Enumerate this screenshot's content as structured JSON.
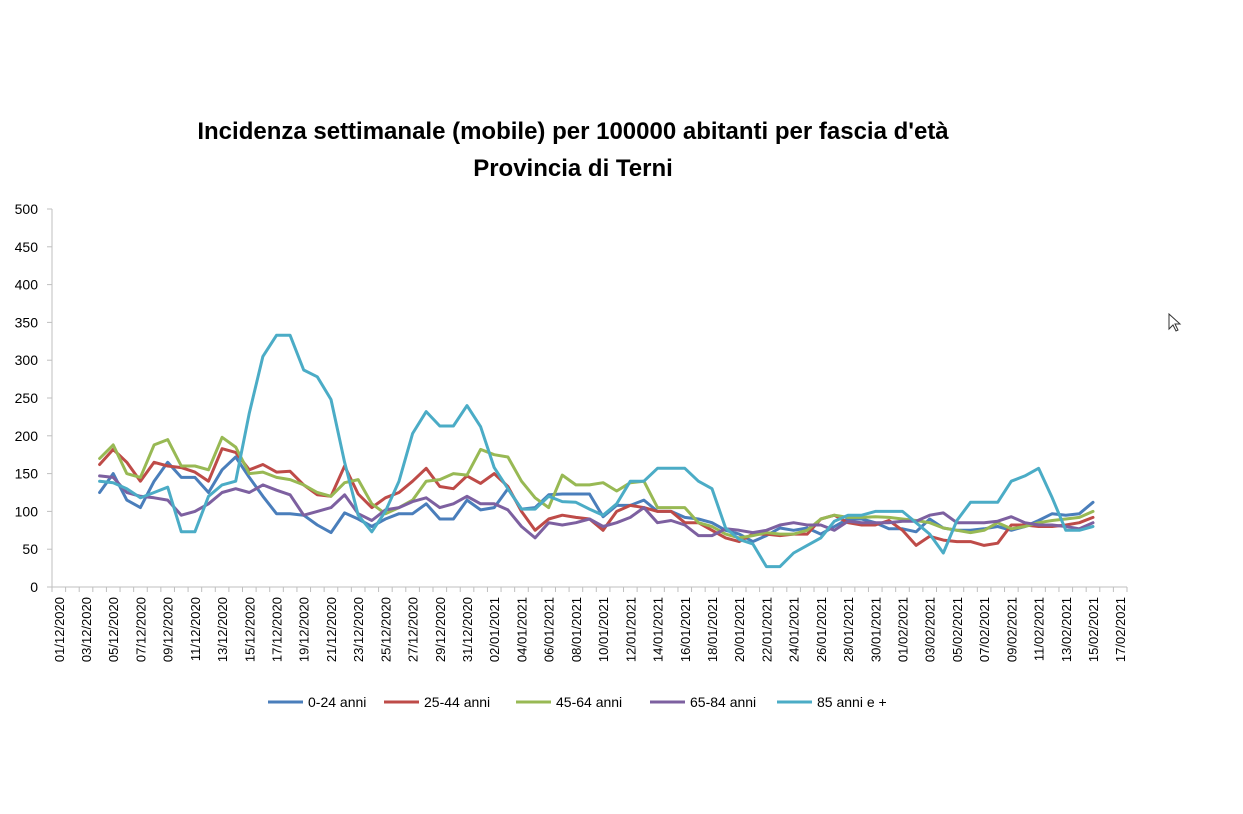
{
  "chart_data": {
    "type": "line",
    "title": "Incidenza settimanale (mobile) per 100000 abitanti per fascia d'età",
    "subtitle": "Provincia di Terni",
    "ylim": [
      0,
      500
    ],
    "yticks": [
      "0",
      "50",
      "100",
      "150",
      "200",
      "250",
      "300",
      "350",
      "400",
      "450",
      "500"
    ],
    "xtick_labels": [
      "01/12/2020",
      "03/12/2020",
      "05/12/2020",
      "07/12/2020",
      "09/12/2020",
      "11/12/2020",
      "13/12/2020",
      "15/12/2020",
      "17/12/2020",
      "19/12/2020",
      "21/12/2020",
      "23/12/2020",
      "25/12/2020",
      "27/12/2020",
      "29/12/2020",
      "31/12/2020",
      "02/01/2021",
      "04/01/2021",
      "06/01/2021",
      "08/01/2021",
      "10/01/2021",
      "12/01/2021",
      "14/01/2021",
      "16/01/2021",
      "18/01/2021",
      "20/01/2021",
      "22/01/2021",
      "24/01/2021",
      "26/01/2021",
      "28/01/2021",
      "30/01/2021",
      "01/02/2021",
      "03/02/2021",
      "05/02/2021",
      "07/02/2021",
      "09/02/2021",
      "11/02/2021",
      "13/02/2021",
      "15/02/2021",
      "17/02/2021"
    ],
    "x_start": "2020-12-04",
    "grid": false,
    "legend_position": "bottom",
    "series": [
      {
        "name": "0-24 anni",
        "color": "#4a7ebb",
        "values": [
          125,
          150,
          115,
          105,
          140,
          165,
          145,
          145,
          125,
          155,
          172,
          145,
          120,
          97,
          97,
          95,
          82,
          72,
          98,
          90,
          80,
          90,
          97,
          97,
          110,
          90,
          90,
          115,
          102,
          105,
          130,
          103,
          105,
          122,
          123,
          123,
          123,
          93,
          108,
          108,
          115,
          100,
          100,
          92,
          90,
          85,
          75,
          70,
          60,
          68,
          78,
          75,
          78,
          70,
          80,
          90,
          90,
          85,
          77,
          77,
          73,
          90,
          78,
          75,
          75,
          77,
          80,
          75,
          80,
          88,
          97,
          95,
          97,
          112
        ]
      },
      {
        "name": "25-44 anni",
        "color": "#be4b48",
        "values": [
          162,
          182,
          165,
          140,
          165,
          160,
          158,
          152,
          140,
          183,
          178,
          155,
          162,
          152,
          153,
          135,
          122,
          120,
          160,
          123,
          105,
          118,
          125,
          140,
          157,
          133,
          130,
          147,
          137,
          150,
          133,
          100,
          75,
          90,
          95,
          92,
          90,
          75,
          100,
          108,
          105,
          100,
          100,
          85,
          85,
          75,
          65,
          60,
          70,
          70,
          68,
          70,
          70,
          90,
          95,
          85,
          82,
          82,
          88,
          75,
          55,
          67,
          62,
          60,
          60,
          55,
          58,
          82,
          82,
          80,
          80,
          82,
          85,
          92
        ]
      },
      {
        "name": "45-64 anni",
        "color": "#98b954",
        "values": [
          170,
          188,
          150,
          145,
          188,
          195,
          160,
          160,
          155,
          198,
          185,
          150,
          152,
          145,
          142,
          135,
          125,
          120,
          138,
          142,
          110,
          97,
          105,
          115,
          140,
          142,
          150,
          148,
          182,
          175,
          172,
          140,
          118,
          105,
          148,
          135,
          135,
          138,
          127,
          138,
          140,
          105,
          105,
          105,
          85,
          80,
          70,
          65,
          68,
          72,
          70,
          70,
          75,
          90,
          95,
          92,
          92,
          93,
          92,
          90,
          88,
          85,
          78,
          75,
          72,
          75,
          85,
          77,
          80,
          85,
          88,
          90,
          92,
          100
        ]
      },
      {
        "name": "65-84 anni",
        "color": "#7d60a0",
        "values": [
          147,
          145,
          125,
          120,
          118,
          115,
          95,
          100,
          110,
          125,
          130,
          125,
          135,
          128,
          122,
          95,
          100,
          105,
          122,
          97,
          88,
          102,
          105,
          113,
          118,
          105,
          110,
          120,
          110,
          110,
          102,
          80,
          65,
          85,
          82,
          85,
          90,
          80,
          85,
          92,
          105,
          85,
          88,
          82,
          68,
          68,
          77,
          75,
          72,
          75,
          82,
          85,
          82,
          82,
          75,
          87,
          85,
          85,
          85,
          87,
          87,
          95,
          98,
          85,
          85,
          85,
          87,
          93,
          85,
          82,
          82,
          80,
          77,
          85
        ]
      },
      {
        "name": "85 anni e +",
        "color": "#4bacc6",
        "values": [
          140,
          138,
          130,
          118,
          125,
          132,
          73,
          73,
          120,
          135,
          140,
          230,
          305,
          333,
          333,
          287,
          278,
          248,
          165,
          95,
          73,
          100,
          140,
          203,
          232,
          213,
          213,
          240,
          212,
          158,
          130,
          103,
          103,
          120,
          113,
          112,
          103,
          95,
          110,
          140,
          140,
          157,
          157,
          157,
          140,
          130,
          78,
          63,
          57,
          27,
          27,
          45,
          55,
          65,
          87,
          95,
          95,
          100,
          100,
          100,
          85,
          70,
          45,
          88,
          112,
          112,
          112,
          140,
          147,
          157,
          118,
          75,
          75,
          80
        ]
      }
    ],
    "legend_labels": [
      "0-24 anni",
      "25-44 anni",
      "45-64 anni",
      "65-84 anni",
      "85 anni e +"
    ]
  }
}
